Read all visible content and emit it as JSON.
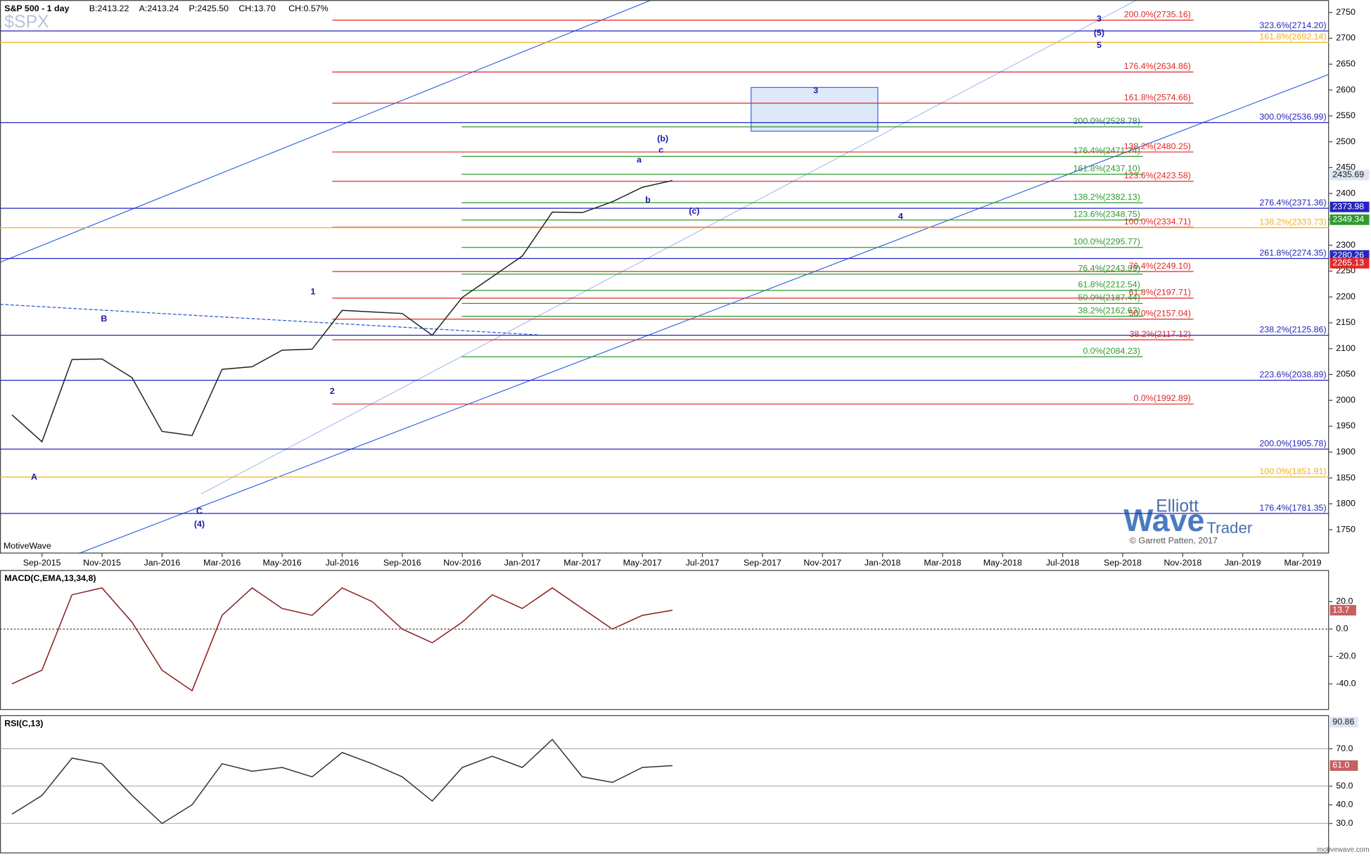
{
  "header": {
    "title": "S&P 500 - 1 day",
    "bid": "B:2413.22",
    "ask": "A:2413.24",
    "price": "P:2425.50",
    "change": "CH:13.70",
    "change_pct": "CH:0.57%",
    "ticker": "$SPX",
    "platform": "MotiveWave"
  },
  "watermark": {
    "line1": "Elliott",
    "line2": "Wave",
    "line3": "Trader",
    "credit": "© Garrett Patten, 2017"
  },
  "footer": "motivewave.com",
  "chart_data": [
    {
      "type": "line",
      "color": "#222222",
      "x": [
        "Aug-2015",
        "Sep-2015",
        "Oct-2015",
        "Nov-2015",
        "Dec-2015",
        "Jan-2016",
        "Feb-2016",
        "Mar-2016",
        "Apr-2016",
        "May-2016",
        "Jun-2016",
        "Jul-2016",
        "Aug-2016",
        "Sep-2016",
        "Oct-2016",
        "Nov-2016",
        "Dec-2016",
        "Jan-2017",
        "Feb-2017",
        "Mar-2017",
        "Apr-2017",
        "May-2017",
        "Jun-2017"
      ],
      "values": [
        1972,
        1920,
        2079,
        2080,
        2044,
        1940,
        1932,
        2060,
        2065,
        2097,
        2099,
        2174,
        2171,
        2168,
        2126,
        2199,
        2239,
        2279,
        2364,
        2363,
        2384,
        2412,
        2425
      ],
      "ylim": [
        1704,
        2774
      ],
      "yticks": [
        1750,
        1800,
        1850,
        1900,
        1950,
        2000,
        2050,
        2100,
        2150,
        2200,
        2250,
        2300,
        2350,
        2400,
        2450,
        2500,
        2550,
        2600,
        2650,
        2700,
        2750
      ],
      "x_axis_labels": [
        "Sep-2015",
        "Nov-2015",
        "Jan-2016",
        "Mar-2016",
        "May-2016",
        "Jul-2016",
        "Sep-2016",
        "Nov-2016",
        "Jan-2017",
        "Mar-2017",
        "May-2017",
        "Jul-2017",
        "Sep-2017",
        "Nov-2017",
        "Jan-2018",
        "Mar-2018",
        "May-2018",
        "Jul-2018",
        "Sep-2018",
        "Nov-2018",
        "Jan-2019",
        "Mar-2019"
      ],
      "fib_levels": [
        {
          "label": "200.0%(2735.16)",
          "value": 2735.16,
          "color": "#e02828"
        },
        {
          "label": "176.4%(2634.86)",
          "value": 2634.86,
          "color": "#e02828"
        },
        {
          "label": "161.8%(2574.66)",
          "value": 2574.66,
          "color": "#e02828"
        },
        {
          "label": "138.2%(2480.25)",
          "value": 2480.25,
          "color": "#e02828"
        },
        {
          "label": "123.6%(2423.58)",
          "value": 2423.58,
          "color": "#e02828"
        },
        {
          "label": "100.0%(2334.71)",
          "value": 2334.71,
          "color": "#e02828"
        },
        {
          "label": "76.4%(2249.10)",
          "value": 2249.1,
          "color": "#e02828"
        },
        {
          "label": "61.8%(2197.71)",
          "value": 2197.71,
          "color": "#e02828"
        },
        {
          "label": "50.0%(2157.04)",
          "value": 2157.04,
          "color": "#e02828"
        },
        {
          "label": "38.2%(2117.12)",
          "value": 2117.12,
          "color": "#e02828"
        },
        {
          "label": "0.0%(1992.89)",
          "value": 1992.89,
          "color": "#e02828"
        },
        {
          "label": "200.0%(2528.78)",
          "value": 2528.78,
          "color": "#2e9a2e"
        },
        {
          "label": "176.4%(2471.74)",
          "value": 2471.74,
          "color": "#2e9a2e"
        },
        {
          "label": "161.8%(2437.10)",
          "value": 2437.1,
          "color": "#2e9a2e"
        },
        {
          "label": "138.2%(2382.13)",
          "value": 2382.13,
          "color": "#2e9a2e"
        },
        {
          "label": "123.6%(2348.75)",
          "value": 2348.75,
          "color": "#2e9a2e"
        },
        {
          "label": "100.0%(2295.77)",
          "value": 2295.77,
          "color": "#2e9a2e"
        },
        {
          "label": "76.4%(2243.99)",
          "value": 2243.99,
          "color": "#2e9a2e"
        },
        {
          "label": "61.8%(2212.54)",
          "value": 2212.54,
          "color": "#2e9a2e"
        },
        {
          "label": "50.0%(2187.44)",
          "value": 2187.44,
          "color": "#2e9a2e"
        },
        {
          "label": "38.2%(2162.63)",
          "value": 2162.63,
          "color": "#2e9a2e"
        },
        {
          "label": "0.0%(2084.23)",
          "value": 2084.23,
          "color": "#2e9a2e"
        },
        {
          "label": "323.6%(2714.20)",
          "value": 2714.2,
          "color": "#2424c0"
        },
        {
          "label": "300.0%(2536.99)",
          "value": 2536.99,
          "color": "#2424c0"
        },
        {
          "label": "276.4%(2371.36)",
          "value": 2371.36,
          "color": "#2424c0"
        },
        {
          "label": "261.8%(2274.35)",
          "value": 2274.35,
          "color": "#2424c0"
        },
        {
          "label": "238.2%(2125.86)",
          "value": 2125.86,
          "color": "#2424c0"
        },
        {
          "label": "223.6%(2038.89)",
          "value": 2038.89,
          "color": "#2424c0"
        },
        {
          "label": "200.0%(1905.78)",
          "value": 1905.78,
          "color": "#2424c0"
        },
        {
          "label": "176.4%(1781.35)",
          "value": 1781.35,
          "color": "#2424c0"
        },
        {
          "label": "161.8%(2692.14)",
          "value": 2692.14,
          "color": "#f0b020"
        },
        {
          "label": "138.2%(2333.73)",
          "value": 2333.73,
          "color": "#f0b020"
        },
        {
          "label": "100.0%(1851.91)",
          "value": 1851.91,
          "color": "#f0b020"
        }
      ],
      "price_tags": [
        {
          "value": 2435.69,
          "color": "#dde4f4"
        },
        {
          "value": 2373.98,
          "color": "#2424c0"
        },
        {
          "value": 2349.34,
          "color": "#2e9a2e"
        },
        {
          "value": 2280.26,
          "color": "#2424c0"
        },
        {
          "value": 2265.13,
          "color": "#e02828"
        }
      ],
      "wave_labels": [
        "3",
        "(5)",
        "5",
        "3",
        "4",
        "1",
        "2",
        "(4)",
        "C",
        "A",
        "B",
        "(b)",
        "(c)",
        "a",
        "b",
        "c"
      ]
    },
    {
      "type": "line",
      "title": "MACD(C,EMA,13,34,8)",
      "color": "#8b1a1a",
      "x": [
        "Aug-2015",
        "Sep-2015",
        "Oct-2015",
        "Nov-2015",
        "Dec-2015",
        "Jan-2016",
        "Feb-2016",
        "Mar-2016",
        "Apr-2016",
        "May-2016",
        "Jun-2016",
        "Jul-2016",
        "Aug-2016",
        "Sep-2016",
        "Oct-2016",
        "Nov-2016",
        "Dec-2016",
        "Jan-2017",
        "Feb-2017",
        "Mar-2017",
        "Apr-2017",
        "May-2017",
        "Jun-2017"
      ],
      "values": [
        -40,
        -30,
        25,
        30,
        5,
        -30,
        -45,
        10,
        30,
        15,
        10,
        30,
        20,
        0,
        -10,
        5,
        25,
        15,
        30,
        15,
        0,
        10,
        13.7
      ],
      "ylim": [
        -59,
        43
      ],
      "yticks": [
        {
          "value": 20,
          "label": "20.0"
        },
        {
          "value": 0,
          "label": "0.0"
        },
        {
          "value": -20,
          "label": "-20.0"
        },
        {
          "value": -40,
          "label": "-40.0"
        }
      ],
      "value_tag": 13.7
    },
    {
      "type": "line",
      "title": "RSI(C,13)",
      "color": "#333333",
      "x": [
        "Aug-2015",
        "Sep-2015",
        "Oct-2015",
        "Nov-2015",
        "Dec-2015",
        "Jan-2016",
        "Feb-2016",
        "Mar-2016",
        "Apr-2016",
        "May-2016",
        "Jun-2016",
        "Jul-2016",
        "Aug-2016",
        "Sep-2016",
        "Oct-2016",
        "Nov-2016",
        "Dec-2016",
        "Jan-2017",
        "Feb-2017",
        "Mar-2017",
        "Apr-2017",
        "May-2017",
        "Jun-2017"
      ],
      "values": [
        35,
        45,
        65,
        62,
        45,
        30,
        40,
        62,
        58,
        60,
        55,
        68,
        62,
        55,
        42,
        60,
        66,
        60,
        75,
        55,
        52,
        60,
        61
      ],
      "ylim": [
        14,
        88
      ],
      "yticks": [
        {
          "value": 70,
          "label": "70.0"
        },
        {
          "value": 50,
          "label": "50.0"
        },
        {
          "value": 40,
          "label": "40.0"
        },
        {
          "value": 30,
          "label": "30.0"
        }
      ],
      "grid_values": [
        70,
        50,
        30
      ],
      "value_tags": [
        {
          "value": 90.86,
          "label": "90.86"
        },
        {
          "value": 61,
          "label": "61.0"
        }
      ]
    }
  ]
}
